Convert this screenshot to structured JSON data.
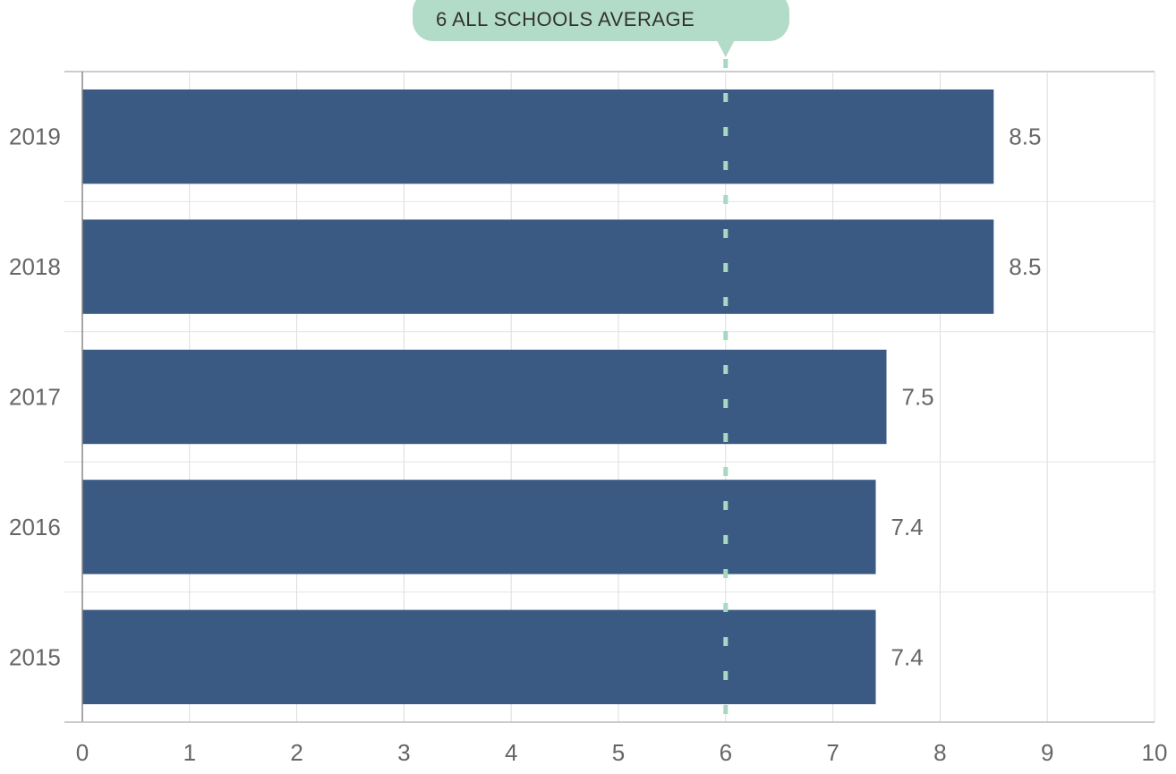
{
  "chart_data": {
    "type": "bar",
    "orientation": "horizontal",
    "categories": [
      "2019",
      "2018",
      "2017",
      "2016",
      "2015"
    ],
    "values": [
      8.5,
      8.5,
      7.5,
      7.4,
      7.4
    ],
    "value_labels": [
      "8.5",
      "8.5",
      "7.5",
      "7.4",
      "7.4"
    ],
    "xlim": [
      0,
      10
    ],
    "x_ticks": [
      "0",
      "1",
      "2",
      "3",
      "4",
      "5",
      "6",
      "7",
      "8",
      "9",
      "10"
    ],
    "grid": true,
    "reference_line": {
      "value": 6,
      "label": "6 ALL SCHOOLS AVERAGE",
      "style": "dashed"
    },
    "colors": {
      "bar": "#3b5a83",
      "reference": "#a6d8c2",
      "callout": "#b3dcc8",
      "grid": "#dddddd",
      "axis": "#bbbbbb"
    }
  }
}
